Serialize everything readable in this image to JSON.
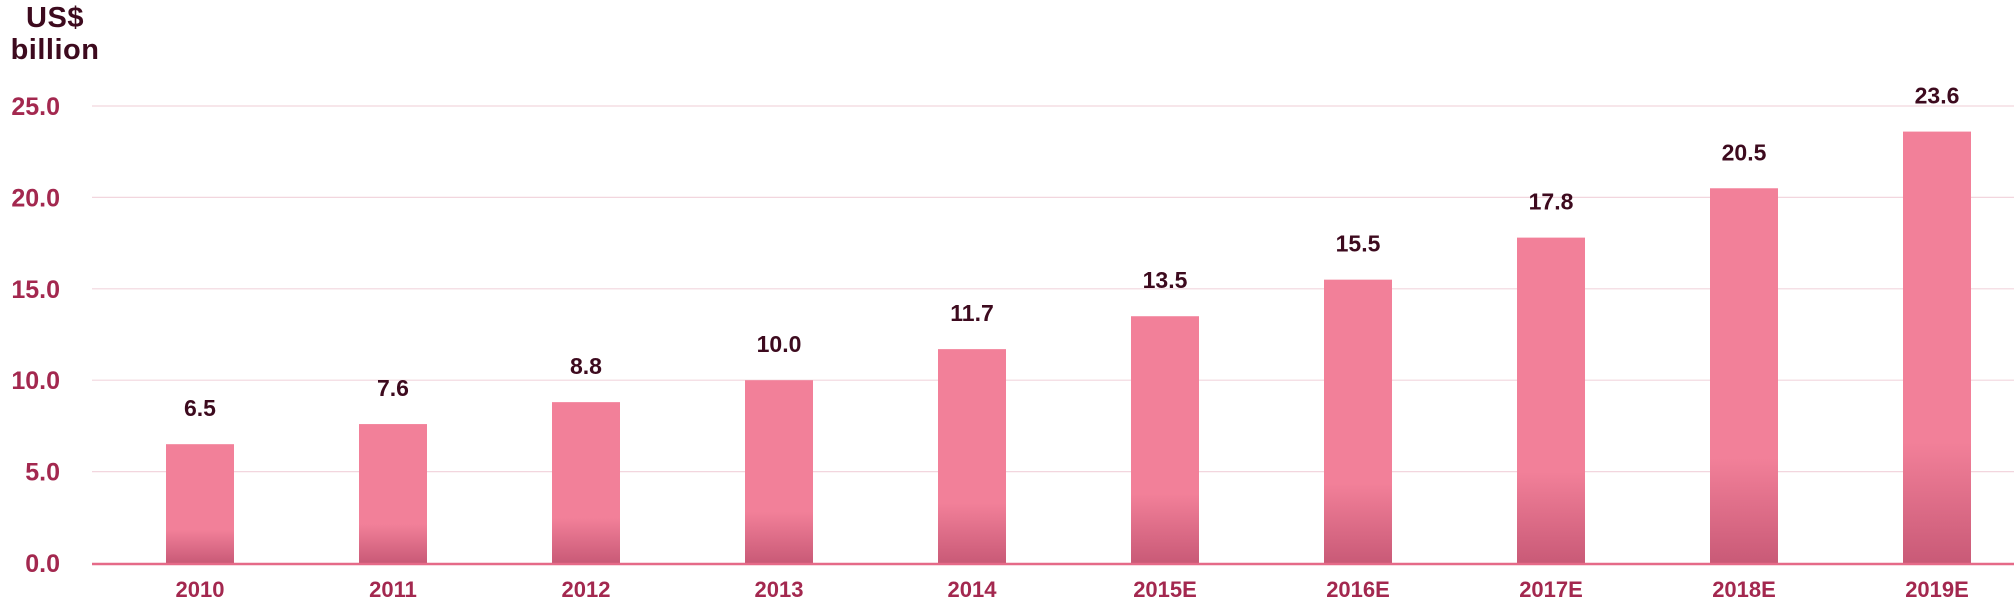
{
  "chart_data": {
    "type": "bar",
    "ylabel_lines": [
      "US$",
      "billion"
    ],
    "categories": [
      "2010",
      "2011",
      "2012",
      "2013",
      "2014",
      "2015E",
      "2016E",
      "2017E",
      "2018E",
      "2019E"
    ],
    "values": [
      6.5,
      7.6,
      8.8,
      10.0,
      11.7,
      13.5,
      15.5,
      17.8,
      20.5,
      23.6
    ],
    "value_labels": [
      "6.5",
      "7.6",
      "8.8",
      "10.0",
      "11.7",
      "13.5",
      "15.5",
      "17.8",
      "20.5",
      "23.6"
    ],
    "y_ticks": [
      "0.0",
      "5.0",
      "10.0",
      "15.0",
      "20.0",
      "25.0"
    ],
    "ylim": [
      0,
      25
    ],
    "grid": true,
    "legend": "none",
    "colors": {
      "bar_top": "#f28099",
      "bar_bottom": "#c95a77",
      "tick_label": "#a3284f",
      "value_label": "#3d0a1e",
      "axis_line": "#e56a88",
      "grid": "#f2d6de"
    }
  }
}
